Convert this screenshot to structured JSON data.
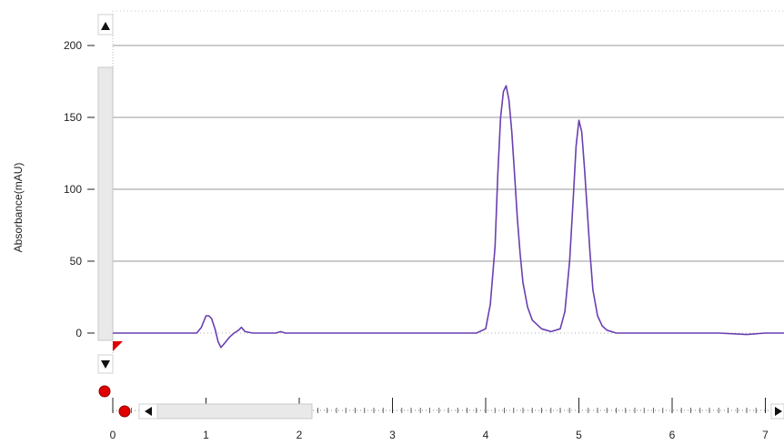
{
  "colors": {
    "trace": "#6a3fb0",
    "grid": "#9a9a9a",
    "marker": "#e00000",
    "scrollbar": "#e9e9e9"
  },
  "icons": {
    "y_scroll_up": "triangle-up-icon",
    "y_scroll_down": "triangle-down-icon",
    "x_scroll_left": "triangle-left-icon",
    "x_scroll_right": "triangle-right-icon",
    "y_marker": "red-dot-icon",
    "x_marker": "red-dot-icon",
    "baseline_marker": "red-flag-icon"
  },
  "chart_data": {
    "type": "line",
    "title": "",
    "ylabel": "Absorbance(mAU)",
    "xlabel": "",
    "xlim": [
      0,
      7.2
    ],
    "ylim": [
      -15,
      220
    ],
    "yticks": [
      0,
      50,
      100,
      150,
      200
    ],
    "xticks": [
      0,
      1,
      2,
      3,
      4,
      5,
      6,
      7
    ],
    "grid": "horizontal",
    "series": [
      {
        "x": [
          0,
          0.5,
          0.9,
          0.95,
          1.0,
          1.03,
          1.06,
          1.1,
          1.13,
          1.16,
          1.2,
          1.25,
          1.3,
          1.35,
          1.38,
          1.42,
          1.5,
          1.6,
          1.7,
          1.75,
          1.8,
          1.85,
          1.9,
          2.0,
          2.5,
          3.0,
          3.5,
          3.9,
          4.0,
          4.05,
          4.1,
          4.13,
          4.16,
          4.19,
          4.22,
          4.25,
          4.28,
          4.31,
          4.34,
          4.37,
          4.4,
          4.45,
          4.5,
          4.6,
          4.7,
          4.8,
          4.85,
          4.9,
          4.94,
          4.97,
          5.0,
          5.03,
          5.06,
          5.09,
          5.12,
          5.15,
          5.2,
          5.25,
          5.3,
          5.4,
          5.5,
          5.6,
          6.0,
          6.5,
          6.8,
          7.0,
          7.2
        ],
        "y": [
          0,
          0,
          0,
          4,
          12,
          12,
          10,
          2,
          -6,
          -10,
          -7,
          -3,
          0,
          2,
          4,
          1,
          0,
          0,
          0,
          0,
          1,
          0,
          0,
          0,
          0,
          0,
          0,
          0,
          3,
          20,
          60,
          110,
          150,
          168,
          172,
          162,
          140,
          110,
          80,
          55,
          35,
          18,
          9,
          3,
          1,
          3,
          15,
          50,
          95,
          130,
          148,
          140,
          115,
          85,
          55,
          30,
          12,
          5,
          2,
          0,
          0,
          0,
          0,
          0,
          -1,
          0,
          0
        ]
      }
    ]
  }
}
